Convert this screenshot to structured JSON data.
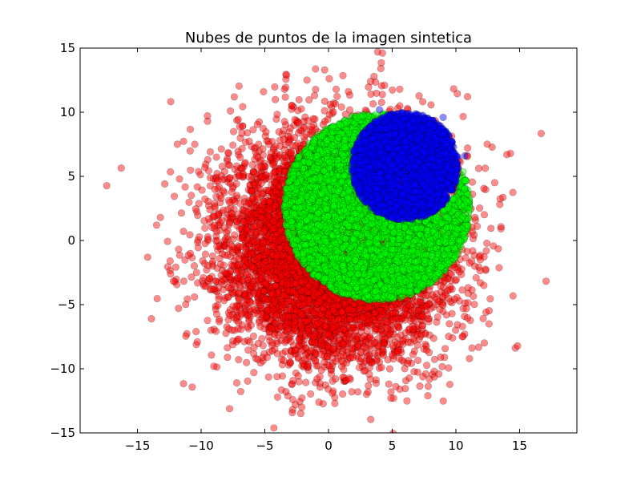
{
  "chart_data": {
    "type": "scatter",
    "title": "Nubes de puntos de la imagen sintetica",
    "xlabel": "",
    "ylabel": "",
    "xlim": [
      -19.5,
      19.5
    ],
    "ylim": [
      -15,
      15
    ],
    "xticks": [
      -15,
      -10,
      -5,
      0,
      5,
      10,
      15
    ],
    "yticks": [
      -15,
      -10,
      -5,
      0,
      5,
      10,
      15
    ],
    "xtick_labels": [
      "−15",
      "−10",
      "−5",
      "0",
      "5",
      "10",
      "15"
    ],
    "ytick_labels": [
      "−15",
      "−10",
      "−5",
      "0",
      "5",
      "10",
      "15"
    ],
    "grid": false,
    "legend": "none",
    "marker_alpha": 0.45,
    "series": [
      {
        "color": "#ff0000",
        "count": 9000,
        "distribution": {
          "center": [
            0.5,
            -0.5
          ],
          "spread": 4.2
        },
        "points": [
          [
            -14.2,
            -1.3
          ],
          [
            -13.9,
            -6.1
          ],
          [
            -13.5,
            1.2
          ],
          [
            -13.2,
            1.8
          ],
          [
            -12.4,
            -2.6
          ],
          [
            -11.7,
            4.8
          ],
          [
            -10.5,
            7.5
          ],
          [
            -10.4,
            -7.1
          ],
          [
            -10.3,
            -7.9
          ],
          [
            -9.5,
            9.3
          ],
          [
            -7.4,
            11.2
          ],
          [
            -7.2,
            -11.1
          ],
          [
            -3.3,
            12.9
          ],
          [
            -2.6,
            -12.8
          ],
          [
            -2.1,
            -13.0
          ],
          [
            0.5,
            -12.7
          ],
          [
            0.3,
            -11.9
          ],
          [
            2.3,
            -11.8
          ],
          [
            3.1,
            -11.8
          ],
          [
            3.3,
            12.4
          ],
          [
            4.4,
            12.1
          ],
          [
            4.9,
            -11.8
          ],
          [
            4.9,
            -12.3
          ],
          [
            7.8,
            -12.1
          ],
          [
            8.3,
            -10.2
          ],
          [
            8.8,
            -9.1
          ],
          [
            -0.3,
            13.3
          ],
          [
            11.3,
            3.6
          ],
          [
            11.3,
            0.7
          ],
          [
            12.2,
            -3.5
          ],
          [
            12.6,
            -6.5
          ],
          [
            14.0,
            6.7
          ],
          [
            11.5,
            1.8
          ],
          [
            10.5,
            -7.5
          ],
          [
            -9.0,
            -9.8
          ],
          [
            -7.7,
            10.1
          ],
          [
            -5.1,
            11.6
          ],
          [
            -1.1,
            11.3
          ],
          [
            5.6,
            10.5
          ]
        ]
      },
      {
        "color": "#00ff00",
        "count": 4500,
        "distribution": {
          "center": [
            3.8,
            2.6
          ],
          "radius": 7.3,
          "cutout_center": [
            6.2,
            5.8
          ],
          "cutout_radius": 4.3
        }
      },
      {
        "color": "#0000ff",
        "count": 3000,
        "distribution": {
          "center": [
            6.0,
            5.8
          ],
          "radius": 4.2
        },
        "points": [
          [
            4.0,
            10.2
          ],
          [
            5.8,
            9.9
          ],
          [
            9.0,
            9.6
          ],
          [
            10.7,
            6.6
          ],
          [
            9.9,
            6.8
          ]
        ]
      }
    ]
  }
}
